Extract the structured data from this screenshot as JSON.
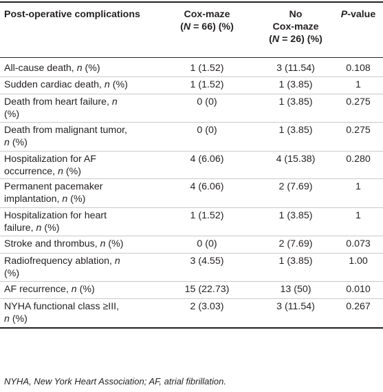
{
  "table": {
    "headers": {
      "col1": "Post-operative complications",
      "col2_line1": "Cox-maze",
      "col2_line2_pre": "(",
      "col2_line2_n": "N",
      "col2_line2_post": " = 66) (%)",
      "col3_line1": "No",
      "col3_line2": "Cox-maze",
      "col3_line3_pre": "(",
      "col3_line3_n": "N",
      "col3_line3_post": " = 26) (%)",
      "col4_p": "P",
      "col4_rest": "-value"
    },
    "rows": [
      {
        "label": "All-cause death, ",
        "label_n": "n",
        "label_tail": " (%)",
        "label2": "",
        "label2_n": "",
        "label2_tail": "",
        "cox": "1 (1.52)",
        "nocox": "3 (11.54)",
        "p": "0.108"
      },
      {
        "label": "Sudden cardiac death, ",
        "label_n": "n",
        "label_tail": " (%)",
        "label2": "",
        "label2_n": "",
        "label2_tail": "",
        "cox": "1 (1.52)",
        "nocox": "1 (3.85)",
        "p": "1"
      },
      {
        "label": "Death from heart failure, ",
        "label_n": "n",
        "label_tail": "",
        "label2": "(%)",
        "label2_n": "",
        "label2_tail": "",
        "cox": "0 (0)",
        "nocox": "1 (3.85)",
        "p": "0.275"
      },
      {
        "label": "Death from malignant tumor, ",
        "label_n": "",
        "label_tail": "",
        "label2": "",
        "label2_n": "n",
        "label2_tail": " (%)",
        "cox": "0 (0)",
        "nocox": "1 (3.85)",
        "p": "0.275"
      },
      {
        "label": "Hospitalization for AF",
        "label_n": "",
        "label_tail": "",
        "label2": "occurrence, ",
        "label2_n": "n",
        "label2_tail": " (%)",
        "cox": "4 (6.06)",
        "nocox": "4 (15.38)",
        "p": "0.280"
      },
      {
        "label": "Permanent pacemaker",
        "label_n": "",
        "label_tail": "",
        "label2": "implantation, ",
        "label2_n": "n",
        "label2_tail": " (%)",
        "cox": "4 (6.06)",
        "nocox": "2 (7.69)",
        "p": "1"
      },
      {
        "label": "Hospitalization for heart",
        "label_n": "",
        "label_tail": "",
        "label2": "failure, ",
        "label2_n": "n",
        "label2_tail": " (%)",
        "cox": "1 (1.52)",
        "nocox": "1 (3.85)",
        "p": "1"
      },
      {
        "label": "Stroke and thrombus, ",
        "label_n": "n",
        "label_tail": " (%)",
        "label2": "",
        "label2_n": "",
        "label2_tail": "",
        "cox": "0 (0)",
        "nocox": "2 (7.69)",
        "p": "0.073"
      },
      {
        "label": "Radiofrequency ablation, ",
        "label_n": "n",
        "label_tail": "",
        "label2": "(%)",
        "label2_n": "",
        "label2_tail": "",
        "cox": "3 (4.55)",
        "nocox": "1 (3.85)",
        "p": "1.00"
      },
      {
        "label": "AF recurrence, ",
        "label_n": "n",
        "label_tail": " (%)",
        "label2": "",
        "label2_n": "",
        "label2_tail": "",
        "cox": "15 (22.73)",
        "nocox": "13 (50)",
        "p": "0.010"
      },
      {
        "label": "NYHA functional class ≥III,",
        "label_n": "",
        "label_tail": "",
        "label2": "",
        "label2_n": "n",
        "label2_tail": " (%)",
        "cox": "2 (3.03)",
        "nocox": "3 (11.54)",
        "p": "0.267"
      }
    ]
  },
  "footnote": "NYHA, New York Heart Association; AF, atrial fibrillation."
}
